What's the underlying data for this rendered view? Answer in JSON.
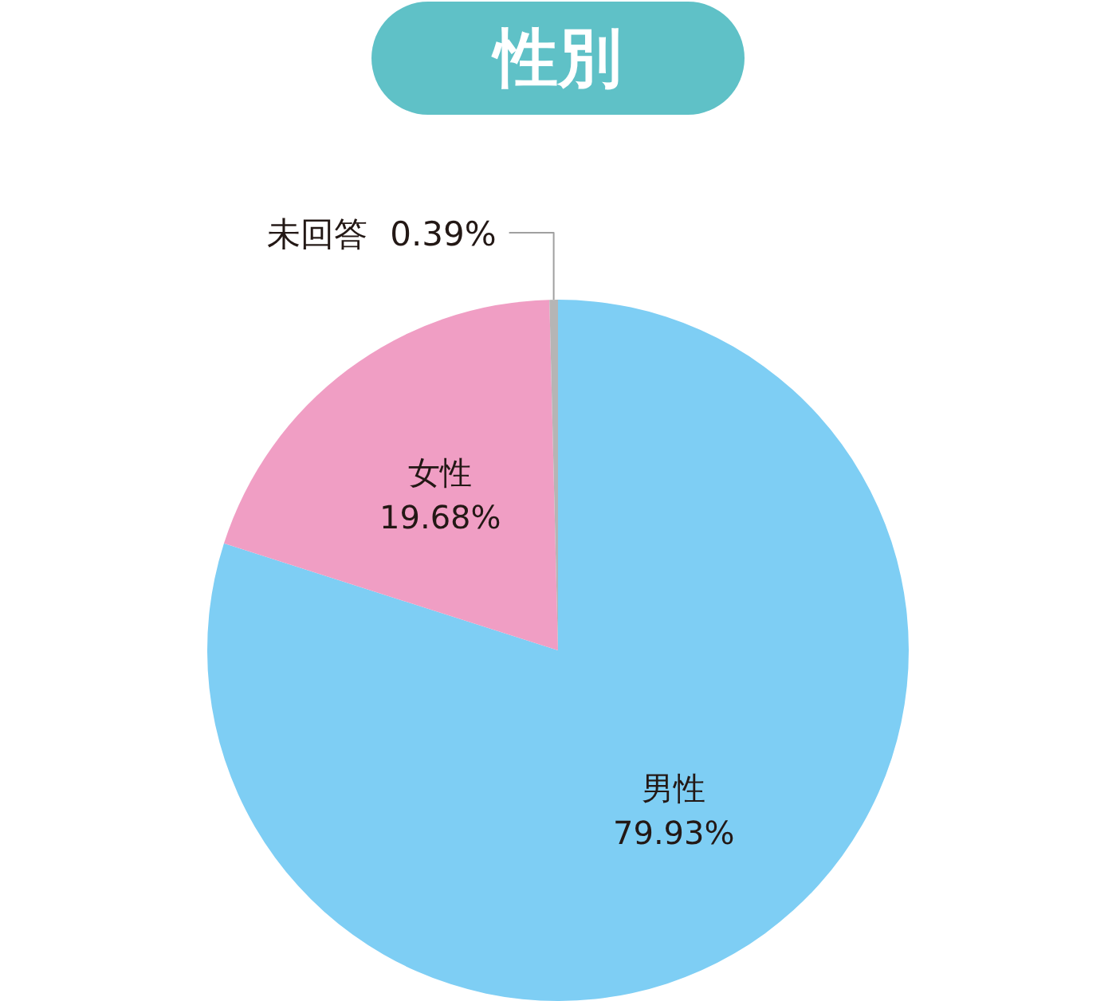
{
  "chart_data": {
    "type": "pie",
    "title": "性別",
    "categories": [
      "男性",
      "女性",
      "未回答"
    ],
    "values": [
      79.93,
      19.68,
      0.39
    ],
    "colors": [
      "#7ecef4",
      "#f09ec4",
      "#b5b5b5"
    ],
    "value_labels": [
      "79.93%",
      "19.68%",
      "0.39%"
    ]
  }
}
